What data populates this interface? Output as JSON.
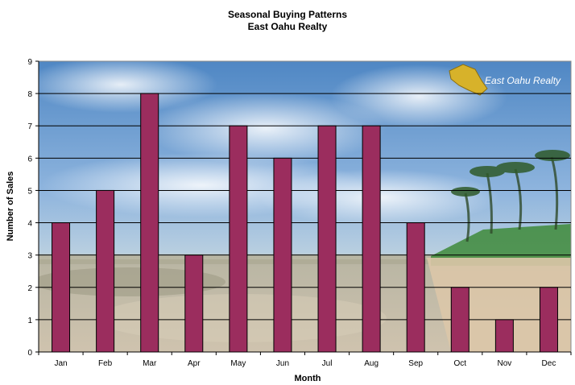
{
  "chart_data": {
    "type": "bar",
    "title": [
      "Seasonal Buying Patterns",
      "East Oahu Realty"
    ],
    "xlabel": "Month",
    "ylabel": "Number of Sales",
    "categories": [
      "Jan",
      "Feb",
      "Mar",
      "Apr",
      "May",
      "Jun",
      "Jul",
      "Aug",
      "Sep",
      "Oct",
      "Nov",
      "Dec"
    ],
    "values": [
      4,
      5,
      8,
      3,
      7,
      6,
      7,
      7,
      4,
      2,
      1,
      2
    ],
    "ylim": [
      0,
      9
    ],
    "yticks": [
      0,
      1,
      2,
      3,
      4,
      5,
      6,
      7,
      8,
      9
    ],
    "grid": true,
    "bar_color": "#9b2d5e",
    "background": "beach photo: blue sky with clouds, palm trees and shoreline",
    "logo_text": "East Oahu Realty"
  }
}
